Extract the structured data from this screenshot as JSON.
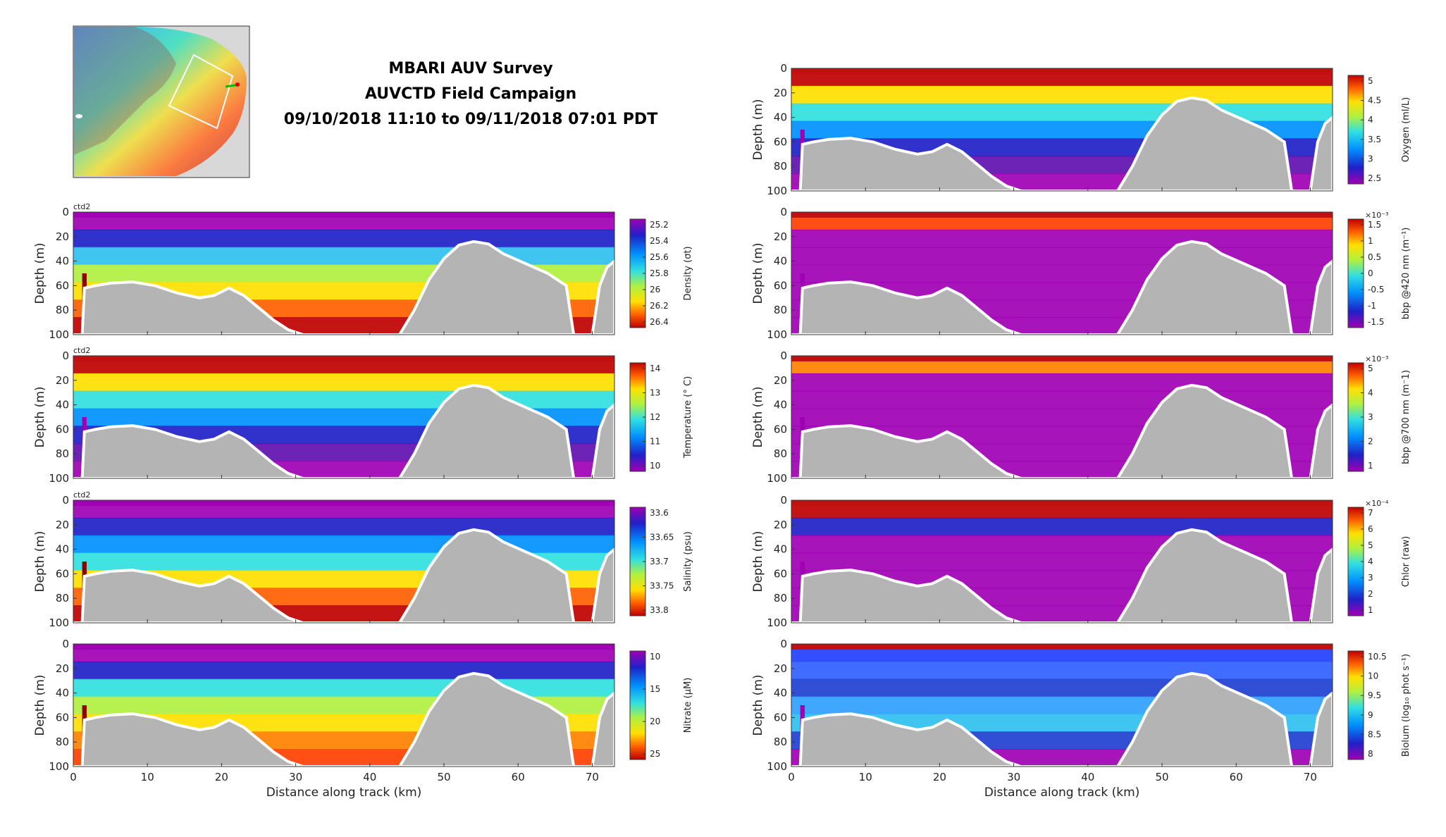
{
  "title": {
    "line1": "MBARI AUV Survey",
    "line2": "AUVCTD Field Campaign",
    "line3": "09/10/2018 11:10 to 09/11/2018 07:01 PDT"
  },
  "chart_data": [
    {
      "type": "heatmap",
      "panel": "density",
      "label": "ctd2",
      "ylabel": "Depth (m)",
      "xlim": [
        0,
        73
      ],
      "ylim": [
        100,
        0
      ],
      "yticks": [
        0,
        20,
        40,
        60,
        80,
        100
      ],
      "colorbar_label": "Density (σt)",
      "colorbar_ticks": [
        "25.2",
        "25.4",
        "25.6",
        "25.8",
        "26",
        "26.2",
        "26.4"
      ],
      "colormap": "jet_reverse"
    },
    {
      "type": "heatmap",
      "panel": "temperature",
      "label": "ctd2",
      "ylabel": "Depth (m)",
      "xlim": [
        0,
        73
      ],
      "ylim": [
        100,
        0
      ],
      "yticks": [
        0,
        20,
        40,
        60,
        80,
        100
      ],
      "colorbar_label": "Temperature (° C)",
      "colorbar_ticks": [
        "14",
        "13",
        "12",
        "11",
        "10"
      ],
      "colormap": "jet"
    },
    {
      "type": "heatmap",
      "panel": "salinity",
      "label": "ctd2",
      "ylabel": "Depth (m)",
      "xlim": [
        0,
        73
      ],
      "ylim": [
        100,
        0
      ],
      "yticks": [
        0,
        20,
        40,
        60,
        80,
        100
      ],
      "colorbar_label": "Salinity (psu)",
      "colorbar_ticks": [
        "33.6",
        "33.65",
        "33.7",
        "33.75",
        "33.8"
      ],
      "colormap": "jet_reverse"
    },
    {
      "type": "heatmap",
      "panel": "nitrate",
      "label": "",
      "ylabel": "Depth (m)",
      "xlabel": "Distance along track (km)",
      "xlim": [
        0,
        73
      ],
      "ylim": [
        100,
        0
      ],
      "xticks": [
        0,
        10,
        20,
        30,
        40,
        50,
        60,
        70
      ],
      "yticks": [
        0,
        20,
        40,
        60,
        80,
        100
      ],
      "colorbar_label": "Nitrate (μM)",
      "colorbar_ticks": [
        "10",
        "15",
        "20",
        "25"
      ],
      "colormap": "jet_reverse"
    },
    {
      "type": "heatmap",
      "panel": "oxygen",
      "label": "",
      "ylabel": "Depth (m)",
      "xlim": [
        0,
        73
      ],
      "ylim": [
        100,
        0
      ],
      "yticks": [
        0,
        20,
        40,
        60,
        80,
        100
      ],
      "colorbar_label": "Oxygen (ml/L)",
      "colorbar_ticks": [
        "5",
        "4.5",
        "4",
        "3.5",
        "3",
        "2.5"
      ],
      "colormap": "jet"
    },
    {
      "type": "heatmap",
      "panel": "bbp420",
      "label": "",
      "ylabel": "Depth (m)",
      "xlim": [
        0,
        73
      ],
      "ylim": [
        100,
        0
      ],
      "yticks": [
        0,
        20,
        40,
        60,
        80,
        100
      ],
      "colorbar_label": "bbp @420 nm (m⁻¹)",
      "colorbar_exponent": "×10⁻³",
      "colorbar_ticks": [
        "1.5",
        "1",
        "0.5",
        "0",
        "-0.5",
        "-1",
        "-1.5"
      ],
      "colormap": "jet"
    },
    {
      "type": "heatmap",
      "panel": "bbp700",
      "label": "",
      "ylabel": "Depth (m)",
      "xlim": [
        0,
        73
      ],
      "ylim": [
        100,
        0
      ],
      "yticks": [
        0,
        20,
        40,
        60,
        80,
        100
      ],
      "colorbar_label": "bbp @700 nm (m⁻1)",
      "colorbar_exponent": "×10⁻³",
      "colorbar_ticks": [
        "5",
        "4",
        "3",
        "2",
        "1"
      ],
      "colormap": "jet"
    },
    {
      "type": "heatmap",
      "panel": "chlor",
      "label": "",
      "ylabel": "Depth (m)",
      "xlim": [
        0,
        73
      ],
      "ylim": [
        100,
        0
      ],
      "yticks": [
        0,
        20,
        40,
        60,
        80,
        100
      ],
      "colorbar_label": "Chlor (raw)",
      "colorbar_exponent": "×10⁻⁴",
      "colorbar_ticks": [
        "7",
        "6",
        "5",
        "4",
        "3",
        "2",
        "1"
      ],
      "colormap": "jet"
    },
    {
      "type": "heatmap",
      "panel": "biolum",
      "label": "",
      "ylabel": "Depth (m)",
      "xlabel": "Distance along track (km)",
      "xlim": [
        0,
        73
      ],
      "ylim": [
        100,
        0
      ],
      "xticks": [
        0,
        10,
        20,
        30,
        40,
        50,
        60,
        70
      ],
      "yticks": [
        0,
        20,
        40,
        60,
        80,
        100
      ],
      "colorbar_label": "Biolum (log₁₀ phot s⁻¹)",
      "colorbar_ticks": [
        "10.5",
        "10",
        "9.5",
        "9",
        "8.5",
        "8"
      ],
      "colormap": "jet"
    }
  ],
  "colors": {
    "seafloor": "#b4b4b4",
    "water_top": "#a600a6"
  }
}
